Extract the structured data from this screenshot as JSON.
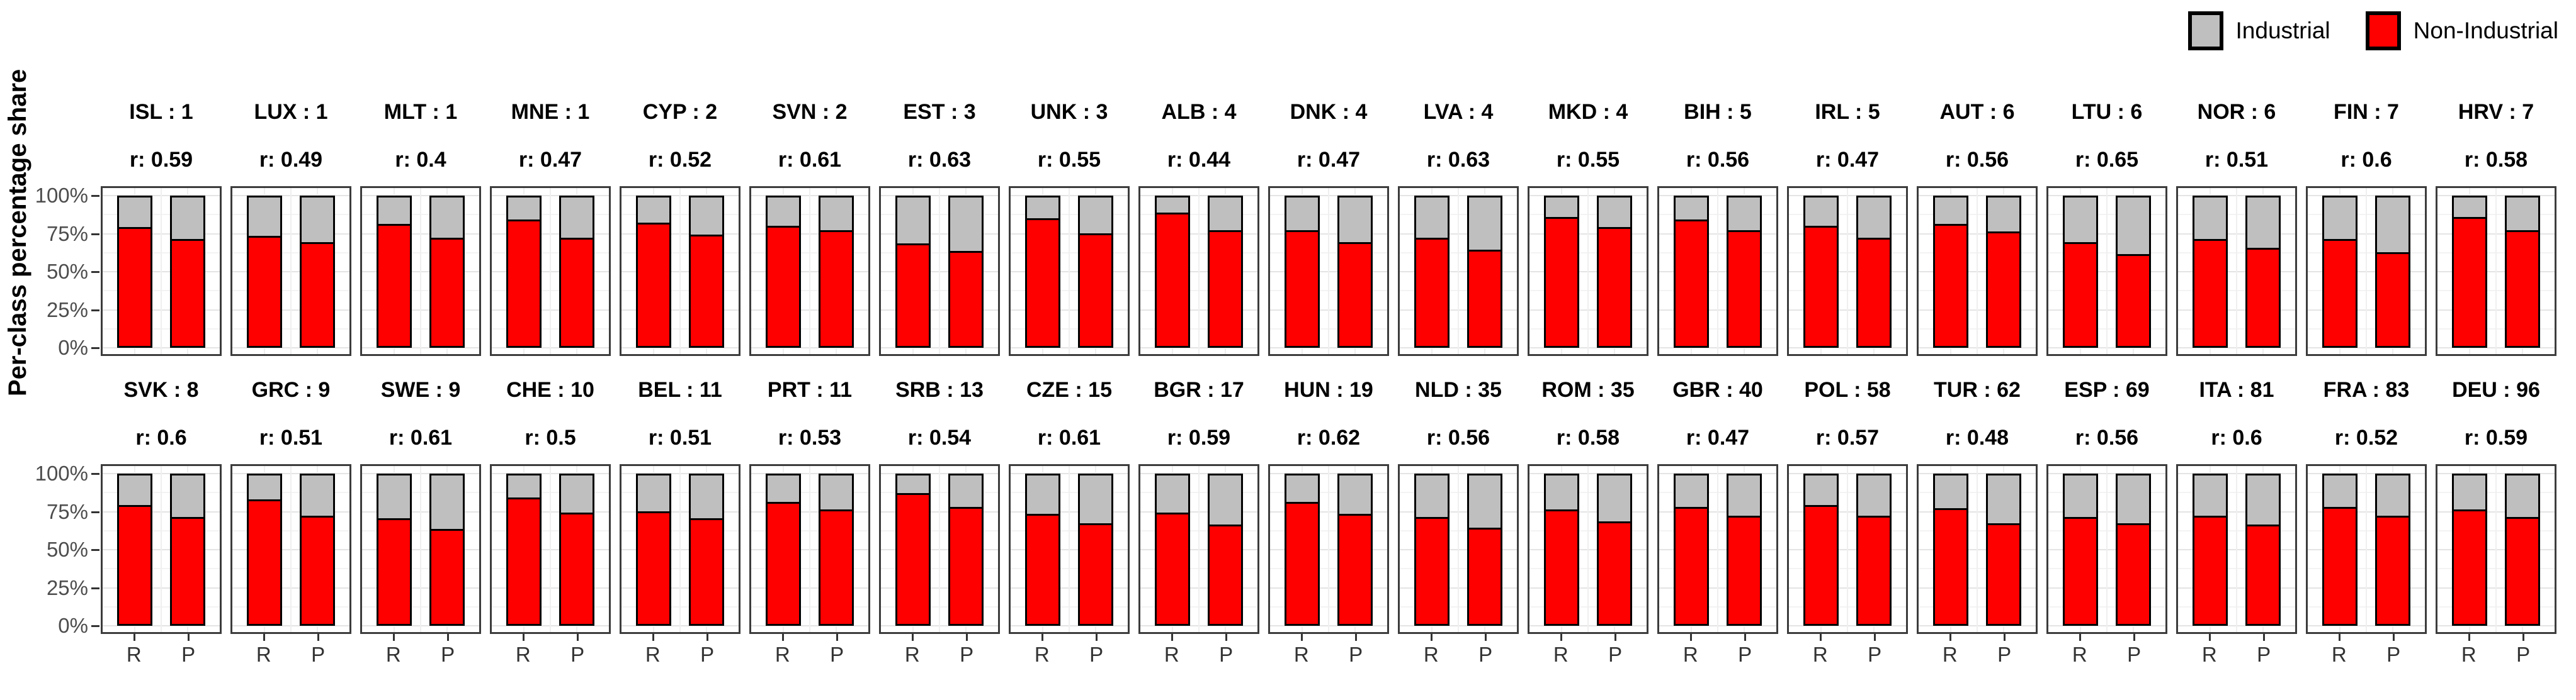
{
  "legend": {
    "items": [
      {
        "label": "Industrial",
        "color": "#bfbfbf"
      },
      {
        "label": "Non-Industrial",
        "color": "#ff0000"
      }
    ]
  },
  "y_axis": {
    "label": "Per-class percentage share",
    "ticks": [
      "100%",
      "75%",
      "50%",
      "25%",
      "0%"
    ]
  },
  "x_axis": {
    "categories": [
      "R",
      "P"
    ]
  },
  "chart_data": {
    "type": "bar",
    "stacked": true,
    "unit": "percent",
    "ylim": [
      0,
      100
    ],
    "grid": "on",
    "legend_position": "top-right",
    "series_labels": [
      "Non-Industrial",
      "Industrial"
    ],
    "series_note": "values = Non-Industrial (red) % share per bar; Industrial (gray) = 100 - value",
    "x_categories": [
      "R",
      "P"
    ],
    "rows": [
      {
        "panels": [
          {
            "label": "ISL : 1",
            "country": "ISL",
            "n": 1,
            "r_label": "r: 0.59",
            "r": 0.59,
            "non_industrial": {
              "R": 80,
              "P": 72
            }
          },
          {
            "label": "LUX : 1",
            "country": "LUX",
            "n": 1,
            "r_label": "r: 0.49",
            "r": 0.49,
            "non_industrial": {
              "R": 74,
              "P": 70
            }
          },
          {
            "label": "MLT : 1",
            "country": "MLT",
            "n": 1,
            "r_label": "r: 0.4",
            "r": 0.4,
            "non_industrial": {
              "R": 82,
              "P": 73
            }
          },
          {
            "label": "MNE : 1",
            "country": "MNE",
            "n": 1,
            "r_label": "r: 0.47",
            "r": 0.47,
            "non_industrial": {
              "R": 85,
              "P": 73
            }
          },
          {
            "label": "CYP : 2",
            "country": "CYP",
            "n": 2,
            "r_label": "r: 0.52",
            "r": 0.52,
            "non_industrial": {
              "R": 83,
              "P": 75
            }
          },
          {
            "label": "SVN : 2",
            "country": "SVN",
            "n": 2,
            "r_label": "r: 0.61",
            "r": 0.61,
            "non_industrial": {
              "R": 81,
              "P": 78
            }
          },
          {
            "label": "EST : 3",
            "country": "EST",
            "n": 3,
            "r_label": "r: 0.63",
            "r": 0.63,
            "non_industrial": {
              "R": 69,
              "P": 64
            }
          },
          {
            "label": "UNK : 3",
            "country": "UNK",
            "n": 3,
            "r_label": "r: 0.55",
            "r": 0.55,
            "non_industrial": {
              "R": 86,
              "P": 76
            }
          },
          {
            "label": "ALB : 4",
            "country": "ALB",
            "n": 4,
            "r_label": "r: 0.44",
            "r": 0.44,
            "non_industrial": {
              "R": 90,
              "P": 78
            }
          },
          {
            "label": "DNK : 4",
            "country": "DNK",
            "n": 4,
            "r_label": "r: 0.47",
            "r": 0.47,
            "non_industrial": {
              "R": 78,
              "P": 70
            }
          },
          {
            "label": "LVA : 4",
            "country": "LVA",
            "n": 4,
            "r_label": "r: 0.63",
            "r": 0.63,
            "non_industrial": {
              "R": 73,
              "P": 65
            }
          },
          {
            "label": "MKD : 4",
            "country": "MKD",
            "n": 4,
            "r_label": "r: 0.55",
            "r": 0.55,
            "non_industrial": {
              "R": 87,
              "P": 80
            }
          },
          {
            "label": "BIH : 5",
            "country": "BIH",
            "n": 5,
            "r_label": "r: 0.56",
            "r": 0.56,
            "non_industrial": {
              "R": 85,
              "P": 78
            }
          },
          {
            "label": "IRL : 5",
            "country": "IRL",
            "n": 5,
            "r_label": "r: 0.47",
            "r": 0.47,
            "non_industrial": {
              "R": 81,
              "P": 73
            }
          },
          {
            "label": "AUT : 6",
            "country": "AUT",
            "n": 6,
            "r_label": "r: 0.56",
            "r": 0.56,
            "non_industrial": {
              "R": 82,
              "P": 77
            }
          },
          {
            "label": "LTU : 6",
            "country": "LTU",
            "n": 6,
            "r_label": "r: 0.65",
            "r": 0.65,
            "non_industrial": {
              "R": 70,
              "P": 62
            }
          },
          {
            "label": "NOR : 6",
            "country": "NOR",
            "n": 6,
            "r_label": "r: 0.51",
            "r": 0.51,
            "non_industrial": {
              "R": 72,
              "P": 66
            }
          },
          {
            "label": "FIN : 7",
            "country": "FIN",
            "n": 7,
            "r_label": "r: 0.6",
            "r": 0.6,
            "non_industrial": {
              "R": 72,
              "P": 63
            }
          },
          {
            "label": "HRV : 7",
            "country": "HRV",
            "n": 7,
            "r_label": "r: 0.58",
            "r": 0.58,
            "non_industrial": {
              "R": 87,
              "P": 78
            }
          }
        ]
      },
      {
        "panels": [
          {
            "label": "SVK : 8",
            "country": "SVK",
            "n": 8,
            "r_label": "r: 0.6",
            "r": 0.6,
            "non_industrial": {
              "R": 80,
              "P": 72
            }
          },
          {
            "label": "GRC : 9",
            "country": "GRC",
            "n": 9,
            "r_label": "r: 0.51",
            "r": 0.51,
            "non_industrial": {
              "R": 84,
              "P": 73
            }
          },
          {
            "label": "SWE : 9",
            "country": "SWE",
            "n": 9,
            "r_label": "r: 0.61",
            "r": 0.61,
            "non_industrial": {
              "R": 71,
              "P": 64
            }
          },
          {
            "label": "CHE : 10",
            "country": "CHE",
            "n": 10,
            "r_label": "r: 0.5",
            "r": 0.5,
            "non_industrial": {
              "R": 85,
              "P": 75
            }
          },
          {
            "label": "BEL : 11",
            "country": "BEL",
            "n": 11,
            "r_label": "r: 0.51",
            "r": 0.51,
            "non_industrial": {
              "R": 76,
              "P": 71
            }
          },
          {
            "label": "PRT : 11",
            "country": "PRT",
            "n": 11,
            "r_label": "r: 0.53",
            "r": 0.53,
            "non_industrial": {
              "R": 82,
              "P": 77
            }
          },
          {
            "label": "SRB : 13",
            "country": "SRB",
            "n": 13,
            "r_label": "r: 0.54",
            "r": 0.54,
            "non_industrial": {
              "R": 88,
              "P": 79
            }
          },
          {
            "label": "CZE : 15",
            "country": "CZE",
            "n": 15,
            "r_label": "r: 0.61",
            "r": 0.61,
            "non_industrial": {
              "R": 74,
              "P": 68
            }
          },
          {
            "label": "BGR : 17",
            "country": "BGR",
            "n": 17,
            "r_label": "r: 0.59",
            "r": 0.59,
            "non_industrial": {
              "R": 75,
              "P": 67
            }
          },
          {
            "label": "HUN : 19",
            "country": "HUN",
            "n": 19,
            "r_label": "r: 0.62",
            "r": 0.62,
            "non_industrial": {
              "R": 82,
              "P": 74
            }
          },
          {
            "label": "NLD : 35",
            "country": "NLD",
            "n": 35,
            "r_label": "r: 0.56",
            "r": 0.56,
            "non_industrial": {
              "R": 72,
              "P": 65
            }
          },
          {
            "label": "ROM : 35",
            "country": "ROM",
            "n": 35,
            "r_label": "r: 0.58",
            "r": 0.58,
            "non_industrial": {
              "R": 77,
              "P": 69
            }
          },
          {
            "label": "GBR : 40",
            "country": "GBR",
            "n": 40,
            "r_label": "r: 0.47",
            "r": 0.47,
            "non_industrial": {
              "R": 79,
              "P": 73
            }
          },
          {
            "label": "POL : 58",
            "country": "POL",
            "n": 58,
            "r_label": "r: 0.57",
            "r": 0.57,
            "non_industrial": {
              "R": 80,
              "P": 73
            }
          },
          {
            "label": "TUR : 62",
            "country": "TUR",
            "n": 62,
            "r_label": "r: 0.48",
            "r": 0.48,
            "non_industrial": {
              "R": 78,
              "P": 68
            }
          },
          {
            "label": "ESP : 69",
            "country": "ESP",
            "n": 69,
            "r_label": "r: 0.56",
            "r": 0.56,
            "non_industrial": {
              "R": 72,
              "P": 68
            }
          },
          {
            "label": "ITA : 81",
            "country": "ITA",
            "n": 81,
            "r_label": "r: 0.6",
            "r": 0.6,
            "non_industrial": {
              "R": 73,
              "P": 67
            }
          },
          {
            "label": "FRA : 83",
            "country": "FRA",
            "n": 83,
            "r_label": "r: 0.52",
            "r": 0.52,
            "non_industrial": {
              "R": 79,
              "P": 73
            }
          },
          {
            "label": "DEU : 96",
            "country": "DEU",
            "n": 96,
            "r_label": "r: 0.59",
            "r": 0.59,
            "non_industrial": {
              "R": 77,
              "P": 72
            }
          }
        ]
      }
    ]
  }
}
